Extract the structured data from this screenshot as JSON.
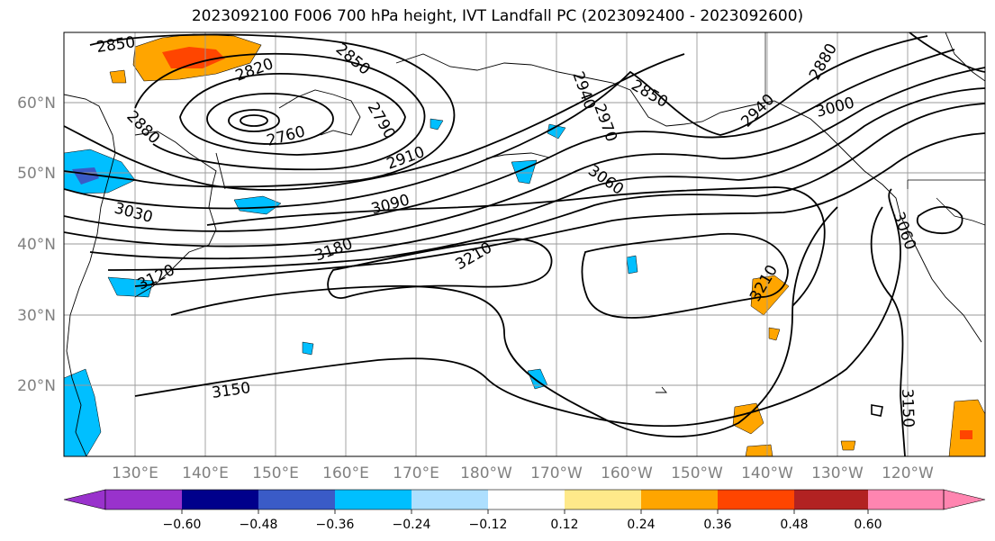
{
  "title": "2023092100 F006 700 hPa height, IVT Landfall PC (2023092400 - 2023092600)",
  "lat_labels": [
    "60°N",
    "50°N",
    "40°N",
    "30°N",
    "20°N"
  ],
  "lon_labels": [
    "130°E",
    "140°E",
    "150°E",
    "160°E",
    "170°E",
    "180°W",
    "170°W",
    "160°W",
    "150°W",
    "140°W",
    "130°W",
    "120°W"
  ],
  "contour_labels": [
    "2850",
    "2820",
    "2850",
    "2790",
    "2760",
    "2880",
    "2910",
    "2940",
    "2970",
    "2850",
    "2940",
    "2880",
    "3000",
    "3060",
    "3030",
    "3090",
    "3180",
    "3210",
    "3120",
    "3060",
    "3210",
    "3150",
    "3150"
  ],
  "colorbar": {
    "tick_labels": [
      "−0.60",
      "−0.48",
      "−0.36",
      "−0.24",
      "−0.12",
      "0.12",
      "0.24",
      "0.36",
      "0.48",
      "0.60"
    ],
    "colors": [
      "#9932CC",
      "#00008B",
      "#3A5BC7",
      "#00BFFF",
      "#ADDFFF",
      "#FFFFFF",
      "#FFE98A",
      "#FFA500",
      "#FF4500",
      "#B22222",
      "#FF85B0"
    ]
  }
}
